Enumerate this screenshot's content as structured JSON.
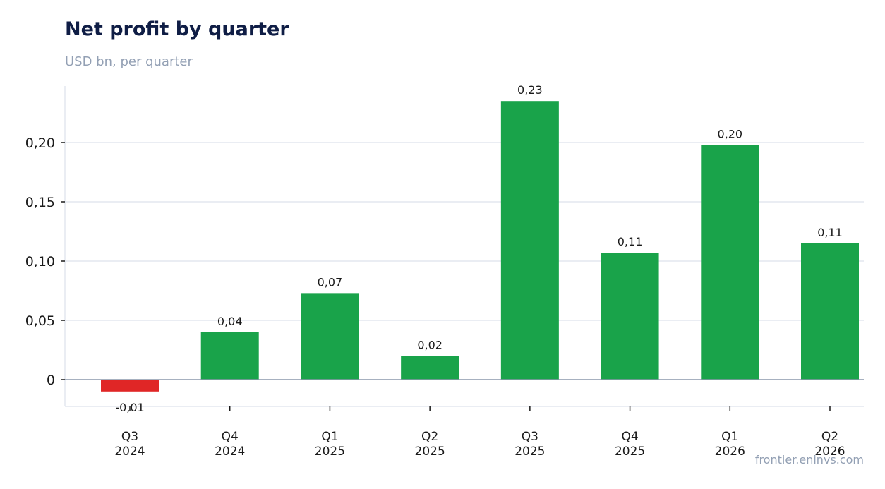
{
  "header": {
    "title": "Net profit by quarter",
    "subtitle": "USD bn, per quarter",
    "source": "frontier.eninvs.com"
  },
  "colors": {
    "positive": "#19a34a",
    "negative": "#e02626",
    "grid": "#e3e7ef",
    "zero_line": "#8a97ab"
  },
  "chart_data": {
    "type": "bar",
    "title": "Net profit by quarter",
    "subtitle": "USD bn, per quarter",
    "xlabel": "",
    "ylabel": "",
    "categories": [
      [
        "Q3",
        "2024"
      ],
      [
        "Q4",
        "2024"
      ],
      [
        "Q1",
        "2025"
      ],
      [
        "Q2",
        "2025"
      ],
      [
        "Q3",
        "2025"
      ],
      [
        "Q4",
        "2025"
      ],
      [
        "Q1",
        "2026"
      ],
      [
        "Q2",
        "2026"
      ]
    ],
    "values": [
      -0.01,
      0.04,
      0.073,
      0.02,
      0.235,
      0.107,
      0.198,
      0.115
    ],
    "value_labels": [
      "-0,01",
      "0,04",
      "0,07",
      "0,02",
      "0,23",
      "0,11",
      "0,20",
      "0,11"
    ],
    "yticks": [
      0,
      0.05,
      0.1,
      0.15,
      0.2
    ],
    "ytick_labels": [
      "0",
      "0,05",
      "0,10",
      "0,15",
      "0,20"
    ],
    "ylim": [
      -0.022,
      0.247
    ],
    "grid": true,
    "legend": "none"
  }
}
